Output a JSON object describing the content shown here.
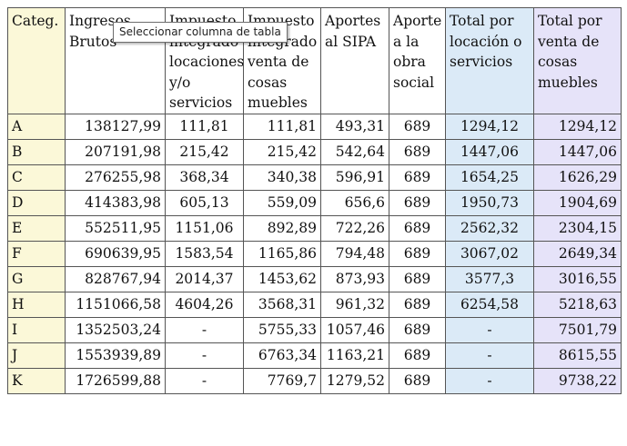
{
  "tooltip": "Seleccionar columna de tabla",
  "colors": {
    "category_col": "#fbf8d8",
    "locacion_col": "#dbeaf7",
    "venta_col": "#e6e3f9",
    "border": "#555555"
  },
  "headers": [
    "Categ.",
    "Ingresos Brutos",
    "Impuesto integrado locaciones y/o servicios",
    "Impuesto integrado venta de cosas muebles",
    "Aportes al SIPA",
    "Aporte a la obra social",
    "Total por locación o servicios",
    "Total por venta de cosas muebles"
  ],
  "rows": [
    [
      "A",
      "138127,99",
      "111,81",
      "111,81",
      "493,31",
      "689",
      "1294,12",
      "1294,12"
    ],
    [
      "B",
      "207191,98",
      "215,42",
      "215,42",
      "542,64",
      "689",
      "1447,06",
      "1447,06"
    ],
    [
      "C",
      "276255,98",
      "368,34",
      "340,38",
      "596,91",
      "689",
      "1654,25",
      "1626,29"
    ],
    [
      "D",
      "414383,98",
      "605,13",
      "559,09",
      "656,6",
      "689",
      "1950,73",
      "1904,69"
    ],
    [
      "E",
      "552511,95",
      "1151,06",
      "892,89",
      "722,26",
      "689",
      "2562,32",
      "2304,15"
    ],
    [
      "F",
      "690639,95",
      "1583,54",
      "1165,86",
      "794,48",
      "689",
      "3067,02",
      "2649,34"
    ],
    [
      "G",
      "828767,94",
      "2014,37",
      "1453,62",
      "873,93",
      "689",
      "3577,3",
      "3016,55"
    ],
    [
      "H",
      "1151066,58",
      "4604,26",
      "3568,31",
      "961,32",
      "689",
      "6254,58",
      "5218,63"
    ],
    [
      "I",
      "1352503,24",
      "-",
      "5755,33",
      "1057,46",
      "689",
      "-",
      "7501,79"
    ],
    [
      "J",
      "1553939,89",
      "-",
      "6763,34",
      "1163,21",
      "689",
      "-",
      "8615,55"
    ],
    [
      "K",
      "1726599,88",
      "-",
      "7769,7",
      "1279,52",
      "689",
      "-",
      "9738,22"
    ]
  ]
}
